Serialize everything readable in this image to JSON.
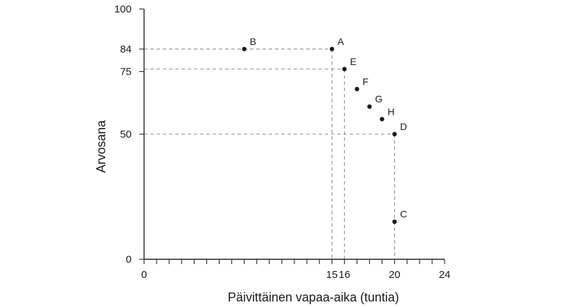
{
  "chart_data": {
    "type": "scatter",
    "xlabel": "Päivittäinen vapaa-aika (tuntia)",
    "ylabel": "Arvosana",
    "xlim": [
      0,
      24
    ],
    "ylim": [
      0,
      100
    ],
    "x_tick_labels": [
      {
        "value": 0,
        "label": "0"
      },
      {
        "value": 15,
        "label": "15"
      },
      {
        "value": 16,
        "label": "16"
      },
      {
        "value": 20,
        "label": "20"
      },
      {
        "value": 24,
        "label": "24"
      }
    ],
    "y_tick_labels": [
      {
        "value": 0,
        "label": "0"
      },
      {
        "value": 50,
        "label": "50"
      },
      {
        "value": 75,
        "label": "75"
      },
      {
        "value": 84,
        "label": "84"
      },
      {
        "value": 100,
        "label": "100"
      }
    ],
    "x_minor_tick_step": 1,
    "points": [
      {
        "label": "A",
        "x": 15,
        "y": 84
      },
      {
        "label": "B",
        "x": 8,
        "y": 84
      },
      {
        "label": "C",
        "x": 20,
        "y": 15
      },
      {
        "label": "D",
        "x": 20,
        "y": 50
      },
      {
        "label": "E",
        "x": 16,
        "y": 76
      },
      {
        "label": "F",
        "x": 17,
        "y": 68
      },
      {
        "label": "G",
        "x": 18,
        "y": 61
      },
      {
        "label": "H",
        "x": 19,
        "y": 56
      }
    ],
    "guides": [
      {
        "x": 15,
        "y": 84
      },
      {
        "x": 16,
        "y": 76
      },
      {
        "x": 20,
        "y": 50
      }
    ],
    "grid": false,
    "legend": "none"
  }
}
